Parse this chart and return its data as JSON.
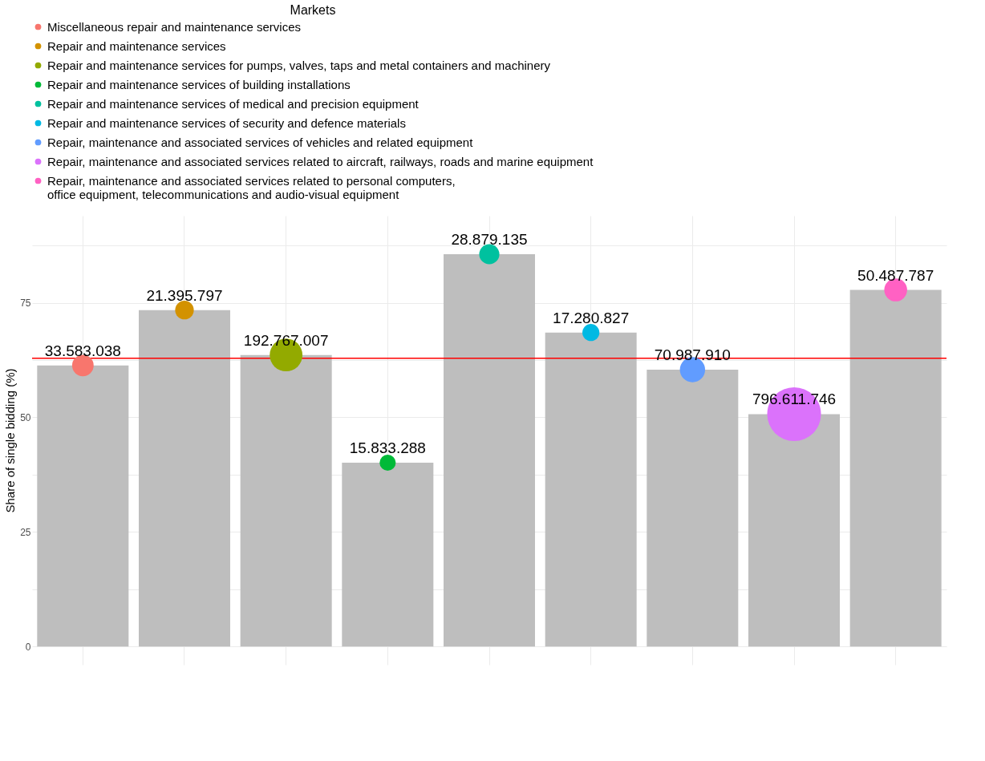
{
  "chart_data": {
    "type": "bar",
    "categories": [
      null,
      null,
      null,
      null,
      null,
      null,
      null,
      null,
      null
    ],
    "ylabel": "Share of single bidding (%)",
    "legend_title": "Markets",
    "legend": "top",
    "grid": true,
    "ylim": [
      -4,
      94
    ],
    "yticks": [
      0,
      {
        "value": 12.5,
        "label": null
      },
      25,
      {
        "value": 37.5,
        "label": null
      },
      50,
      {
        "value": 62.5,
        "label": null
      },
      75,
      {
        "value": 87.5,
        "label": null
      }
    ],
    "ref_lines": [
      {
        "axis": "y",
        "value": 62.9,
        "color": "#ff0000"
      }
    ],
    "annotations": [
      {
        "text": "33.583.038",
        "y": 61.3
      },
      {
        "text": "21.395.797",
        "y": 73.4
      },
      {
        "text": "192.767.007",
        "y": 63.6
      },
      {
        "text": "15.833.288",
        "y": 40.1
      },
      {
        "text": "28.879.135",
        "y": 85.6
      },
      {
        "text": "17.280.827",
        "y": 68.5
      },
      {
        "text": "70.987.910",
        "y": 60.4
      },
      {
        "text": "796.611.746",
        "y": 50.7
      },
      {
        "text": "50.487.787",
        "y": 77.8
      }
    ],
    "series": [
      {
        "color": "#bebebe",
        "values": [
          61.3,
          73.4,
          63.6,
          40.1,
          85.6,
          68.5,
          60.4,
          50.7,
          77.8
        ]
      },
      {
        "type": "bubble",
        "name": "Miscellaneous repair and maintenance services",
        "color": "#f8766d",
        "values": [
          61.3,
          null,
          null,
          null,
          null,
          null,
          null,
          null,
          null
        ],
        "sizes": [
          0.16,
          null,
          null,
          null,
          null,
          null,
          null,
          null,
          null
        ]
      },
      {
        "type": "bubble",
        "name": "Repair and maintenance services",
        "color": "#d39200",
        "values": [
          null,
          73.4,
          null,
          null,
          null,
          null,
          null,
          null,
          null
        ],
        "sizes": [
          null,
          0.12,
          null,
          null,
          null,
          null,
          null,
          null,
          null
        ]
      },
      {
        "type": "bubble",
        "name": "Repair and maintenance services for pumps, valves, taps and metal containers and machinery",
        "color": "#93aa00",
        "values": [
          null,
          null,
          63.6,
          null,
          null,
          null,
          null,
          null,
          null
        ],
        "sizes": [
          null,
          null,
          0.37,
          null,
          null,
          null,
          null,
          null,
          null
        ]
      },
      {
        "type": "bubble",
        "name": "Repair and maintenance services of building installations",
        "color": "#00ba38",
        "values": [
          null,
          null,
          null,
          40.1,
          null,
          null,
          null,
          null,
          null
        ],
        "sizes": [
          null,
          null,
          null,
          0.09,
          null,
          null,
          null,
          null,
          null
        ]
      },
      {
        "type": "bubble",
        "name": "Repair and maintenance services of medical and precision equipment",
        "color": "#00c19f",
        "values": [
          null,
          null,
          null,
          null,
          85.6,
          null,
          null,
          null,
          null
        ],
        "sizes": [
          null,
          null,
          null,
          null,
          0.14,
          null,
          null,
          null,
          null
        ]
      },
      {
        "type": "bubble",
        "name": "Repair and maintenance services of security and defence materials",
        "color": "#00b9e3",
        "values": [
          null,
          null,
          null,
          null,
          null,
          68.5,
          null,
          null,
          null
        ],
        "sizes": [
          null,
          null,
          null,
          null,
          null,
          0.1,
          null,
          null,
          null
        ]
      },
      {
        "type": "bubble",
        "name": "Repair, maintenance and associated services of vehicles and related equipment",
        "color": "#619cff",
        "values": [
          null,
          null,
          null,
          null,
          null,
          null,
          60.4,
          null,
          null
        ],
        "sizes": [
          null,
          null,
          null,
          null,
          null,
          null,
          0.22,
          null,
          null
        ]
      },
      {
        "type": "bubble",
        "name": "Repair, maintenance and associated services related to aircraft, railways, roads and marine equipment",
        "color": "#db72fb",
        "values": [
          null,
          null,
          null,
          null,
          null,
          null,
          null,
          50.7,
          null
        ],
        "sizes": [
          null,
          null,
          null,
          null,
          null,
          null,
          null,
          1,
          null
        ]
      },
      {
        "type": "bubble",
        "name": "Repair, maintenance and associated services related to personal computers,\n office equipment, telecommunications and audio-visual equipment",
        "color": "#ff61c3",
        "values": [
          null,
          null,
          null,
          null,
          null,
          null,
          null,
          null,
          77.8
        ],
        "sizes": [
          null,
          null,
          null,
          null,
          null,
          null,
          null,
          null,
          0.18
        ]
      }
    ]
  }
}
